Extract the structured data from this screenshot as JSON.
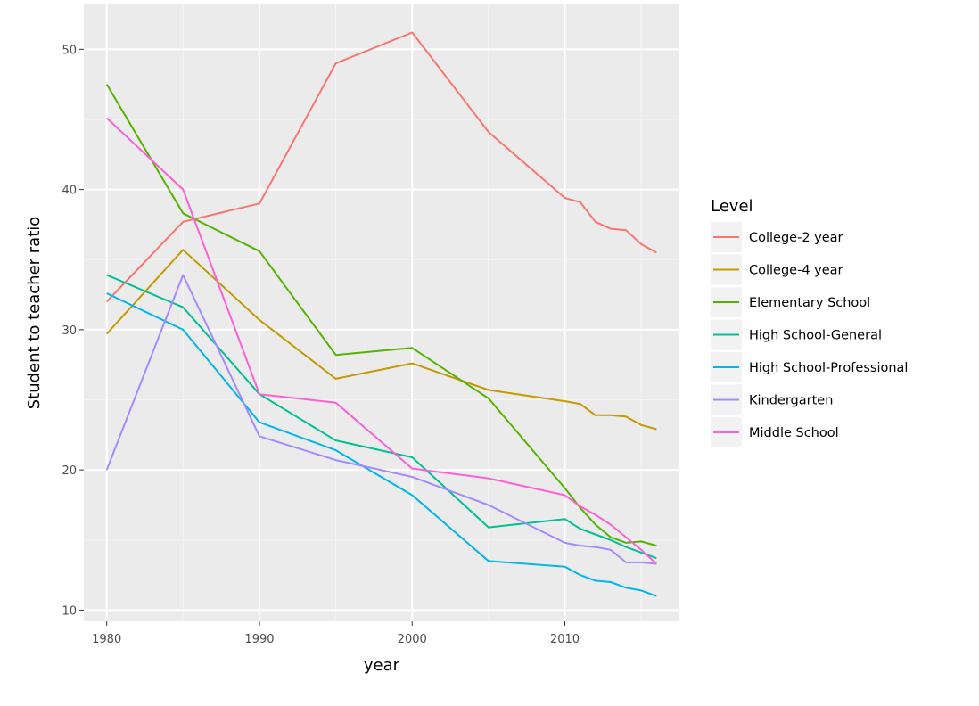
{
  "chart_data": {
    "type": "line",
    "title": "",
    "xlabel": "year",
    "ylabel": "Student to teacher ratio",
    "xlim": [
      1978.5,
      2017.5
    ],
    "ylim": [
      9.2,
      53.2
    ],
    "xticks": [
      1980,
      1990,
      2000,
      2010
    ],
    "yticks": [
      10,
      20,
      30,
      40,
      50
    ],
    "grid": true,
    "legend": {
      "title": "Level",
      "position": "right"
    },
    "series": [
      {
        "name": "College-2 year",
        "color": "#F8766D",
        "points": [
          [
            1980,
            32.0
          ],
          [
            1985,
            37.7
          ],
          [
            1990,
            39.0
          ],
          [
            1995,
            49.0
          ],
          [
            2000,
            51.2
          ],
          [
            2005,
            44.1
          ],
          [
            2010,
            39.4
          ],
          [
            2011,
            39.1
          ],
          [
            2012,
            37.7
          ],
          [
            2013,
            37.2
          ],
          [
            2014,
            37.1
          ],
          [
            2015,
            36.1
          ],
          [
            2016,
            35.5
          ]
        ]
      },
      {
        "name": "College-4 year",
        "color": "#C49A00",
        "points": [
          [
            1980,
            29.7
          ],
          [
            1985,
            35.7
          ],
          [
            1990,
            30.7
          ],
          [
            1995,
            26.5
          ],
          [
            2000,
            27.6
          ],
          [
            2005,
            25.7
          ],
          [
            2010,
            24.9
          ],
          [
            2011,
            24.7
          ],
          [
            2012,
            23.9
          ],
          [
            2013,
            23.9
          ],
          [
            2014,
            23.8
          ],
          [
            2015,
            23.2
          ],
          [
            2016,
            22.9
          ]
        ]
      },
      {
        "name": "Elementary School",
        "color": "#53B400",
        "points": [
          [
            1980,
            47.5
          ],
          [
            1985,
            38.3
          ],
          [
            1990,
            35.6
          ],
          [
            1995,
            28.2
          ],
          [
            2000,
            28.7
          ],
          [
            2005,
            25.1
          ],
          [
            2010,
            18.7
          ],
          [
            2011,
            17.3
          ],
          [
            2012,
            16.1
          ],
          [
            2013,
            15.2
          ],
          [
            2014,
            14.8
          ],
          [
            2015,
            14.9
          ],
          [
            2016,
            14.6
          ]
        ]
      },
      {
        "name": "High School-General",
        "color": "#00C094",
        "points": [
          [
            1980,
            33.9
          ],
          [
            1985,
            31.6
          ],
          [
            1990,
            25.4
          ],
          [
            1995,
            22.1
          ],
          [
            2000,
            20.9
          ],
          [
            2005,
            15.9
          ],
          [
            2010,
            16.5
          ],
          [
            2011,
            15.8
          ],
          [
            2012,
            15.4
          ],
          [
            2013,
            15.0
          ],
          [
            2014,
            14.5
          ],
          [
            2015,
            14.1
          ],
          [
            2016,
            13.7
          ]
        ]
      },
      {
        "name": "High School-Professional",
        "color": "#00B6EB",
        "points": [
          [
            1980,
            32.6
          ],
          [
            1985,
            30.0
          ],
          [
            1990,
            23.4
          ],
          [
            1995,
            21.4
          ],
          [
            2000,
            18.2
          ],
          [
            2005,
            13.5
          ],
          [
            2010,
            13.1
          ],
          [
            2011,
            12.5
          ],
          [
            2012,
            12.1
          ],
          [
            2013,
            12.0
          ],
          [
            2014,
            11.6
          ],
          [
            2015,
            11.4
          ],
          [
            2016,
            11.0
          ]
        ]
      },
      {
        "name": "Kindergarten",
        "color": "#A58AFF",
        "points": [
          [
            1980,
            20.0
          ],
          [
            1985,
            33.9
          ],
          [
            1990,
            22.4
          ],
          [
            1995,
            20.7
          ],
          [
            2000,
            19.5
          ],
          [
            2005,
            17.5
          ],
          [
            2010,
            14.8
          ],
          [
            2011,
            14.6
          ],
          [
            2012,
            14.5
          ],
          [
            2013,
            14.3
          ],
          [
            2014,
            13.4
          ],
          [
            2015,
            13.4
          ],
          [
            2016,
            13.3
          ]
        ]
      },
      {
        "name": "Middle School",
        "color": "#FB61D7",
        "points": [
          [
            1980,
            45.1
          ],
          [
            1985,
            40.0
          ],
          [
            1990,
            25.4
          ],
          [
            1995,
            24.8
          ],
          [
            2000,
            20.1
          ],
          [
            2005,
            19.4
          ],
          [
            2010,
            18.2
          ],
          [
            2011,
            17.4
          ],
          [
            2012,
            16.8
          ],
          [
            2013,
            16.1
          ],
          [
            2014,
            15.2
          ],
          [
            2015,
            14.3
          ],
          [
            2016,
            13.3
          ]
        ]
      }
    ]
  }
}
